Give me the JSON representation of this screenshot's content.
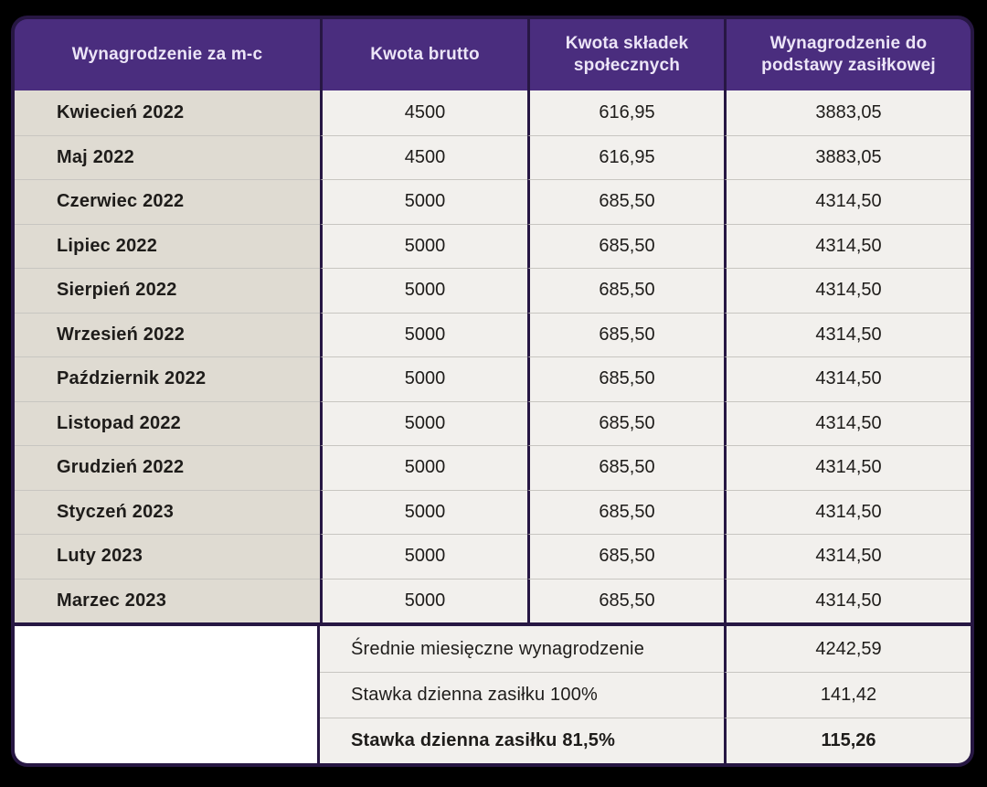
{
  "chart_data": {
    "type": "table",
    "columns": [
      "Wynagrodzenie za m-c",
      "Kwota brutto",
      "Kwota składek społecznych",
      "Wynagrodzenie do podstawy zasiłkowej"
    ],
    "rows": [
      {
        "month": "Kwiecień 2022",
        "kwota_brutto": "4500",
        "kwota_skladek": "616,95",
        "podstawa": "3883,05"
      },
      {
        "month": "Maj 2022",
        "kwota_brutto": "4500",
        "kwota_skladek": "616,95",
        "podstawa": "3883,05"
      },
      {
        "month": "Czerwiec 2022",
        "kwota_brutto": "5000",
        "kwota_skladek": "685,50",
        "podstawa": "4314,50"
      },
      {
        "month": "Lipiec 2022",
        "kwota_brutto": "5000",
        "kwota_skladek": "685,50",
        "podstawa": "4314,50"
      },
      {
        "month": "Sierpień 2022",
        "kwota_brutto": "5000",
        "kwota_skladek": "685,50",
        "podstawa": "4314,50"
      },
      {
        "month": "Wrzesień 2022",
        "kwota_brutto": "5000",
        "kwota_skladek": "685,50",
        "podstawa": "4314,50"
      },
      {
        "month": "Październik 2022",
        "kwota_brutto": "5000",
        "kwota_skladek": "685,50",
        "podstawa": "4314,50"
      },
      {
        "month": "Listopad 2022",
        "kwota_brutto": "5000",
        "kwota_skladek": "685,50",
        "podstawa": "4314,50"
      },
      {
        "month": "Grudzień 2022",
        "kwota_brutto": "5000",
        "kwota_skladek": "685,50",
        "podstawa": "4314,50"
      },
      {
        "month": "Styczeń 2023",
        "kwota_brutto": "5000",
        "kwota_skladek": "685,50",
        "podstawa": "4314,50"
      },
      {
        "month": "Luty 2023",
        "kwota_brutto": "5000",
        "kwota_skladek": "685,50",
        "podstawa": "4314,50"
      },
      {
        "month": "Marzec 2023",
        "kwota_brutto": "5000",
        "kwota_skladek": "685,50",
        "podstawa": "4314,50"
      }
    ],
    "summary": [
      {
        "label": "Średnie miesięczne wynagrodzenie",
        "value": "4242,59",
        "bold": false
      },
      {
        "label": "Stawka dzienna zasiłku 100%",
        "value": "141,42",
        "bold": false
      },
      {
        "label": "Stawka dzienna zasiłku 81,5%",
        "value": "115,26",
        "bold": true
      }
    ],
    "layout": {
      "grid": "off",
      "legend": "none",
      "header_rounded_corners": true
    }
  },
  "colors": {
    "background": "#000000",
    "header_purple": "#4a2d7e",
    "border_purple": "#271743",
    "month_column_bg": "#dfdbd2",
    "cell_bg": "#f2f0ed",
    "empty_block_bg": "#ffffff",
    "row_divider": "#c8c6c1",
    "text_dark": "#1e1c1a",
    "header_text": "#ece5f7"
  }
}
